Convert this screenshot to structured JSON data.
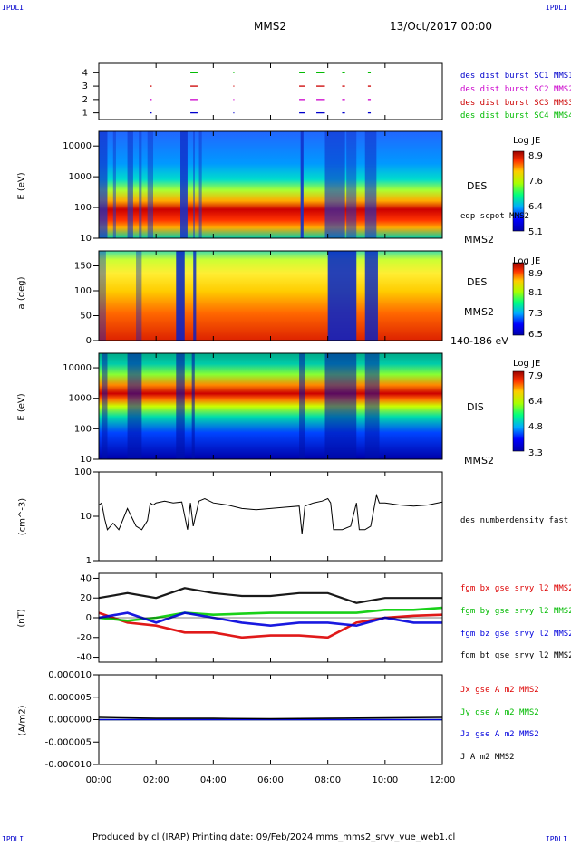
{
  "header": {
    "corner_tl": "IPDLI",
    "corner_tr": "IPDLI",
    "corner_bl": "IPDLI",
    "corner_br": "IPDLI",
    "title": "MMS2",
    "datetime": "13/Oct/2017 00:00",
    "footer": "Produced by cl (IRAP)   Printing date: 09/Feb/2024   mms_mms2_srvy_vue_web1.cl"
  },
  "time_axis": {
    "ticks": [
      "00:00",
      "02:00",
      "04:00",
      "06:00",
      "08:00",
      "10:00",
      "12:00"
    ],
    "range_hours": [
      0,
      12
    ]
  },
  "panels": {
    "burst": {
      "yticks": [
        "1",
        "2",
        "3",
        "4"
      ],
      "legend": [
        {
          "label": "des dist burst SC1 MMS1",
          "color": "#0000cc"
        },
        {
          "label": "des dist burst SC2 MMS2",
          "color": "#cc00cc"
        },
        {
          "label": "des dist burst SC3 MMS3",
          "color": "#cc0000"
        },
        {
          "label": "des dist burst SC4 MMS4",
          "color": "#00bb00"
        }
      ]
    },
    "des_energy": {
      "ylabel": "E (eV)",
      "yticks": [
        "10",
        "100",
        "1000",
        "10000"
      ],
      "label_main": "DES",
      "label_sub": "edp scpot MMS2",
      "label_sc": "MMS2",
      "colorbar_title": "Log JE",
      "colorbar_ticks": [
        "8.9",
        "7.6",
        "6.4",
        "5.1"
      ]
    },
    "des_pitch": {
      "ylabel": "a (deg)",
      "yticks": [
        "0",
        "50",
        "100",
        "150"
      ],
      "label_main": "DES",
      "label_sc": "MMS2",
      "label_range": "140-186 eV",
      "colorbar_title": "Log JE",
      "colorbar_ticks": [
        "8.9",
        "8.1",
        "7.3",
        "6.5"
      ]
    },
    "dis_energy": {
      "ylabel": "E (eV)",
      "yticks": [
        "10",
        "100",
        "1000",
        "10000"
      ],
      "label_main": "DIS",
      "label_sc": "MMS2",
      "colorbar_title": "Log JE",
      "colorbar_ticks": [
        "7.9",
        "6.4",
        "4.8",
        "3.3"
      ]
    },
    "density": {
      "ylabel": "(cm^-3)",
      "yticks": [
        "1",
        "10",
        "100"
      ],
      "legend": "des numberdensity fast M"
    },
    "bfield": {
      "ylabel": "(nT)",
      "yticks": [
        "-40",
        "-20",
        "0",
        "20",
        "40"
      ],
      "legend": [
        {
          "label": "fgm bx gse srvy l2 MMS2",
          "color": "#dd0000"
        },
        {
          "label": "fgm by gse srvy l2 MMS2",
          "color": "#00cc00"
        },
        {
          "label": "fgm bz gse srvy l2 MMS2",
          "color": "#0000dd"
        },
        {
          "label": "fgm bt gse srvy l2 MMS2",
          "color": "#000000"
        }
      ]
    },
    "current": {
      "ylabel": "(A/m2)",
      "yticks": [
        "-0.000010",
        "-0.000005",
        "0.000000",
        "0.000005",
        "0.000010"
      ],
      "legend": [
        {
          "label": "Jx gse A m2 MMS2",
          "color": "#dd0000"
        },
        {
          "label": "Jy gse A m2 MMS2",
          "color": "#00cc00"
        },
        {
          "label": "Jz gse A m2 MMS2",
          "color": "#0000dd"
        },
        {
          "label": "J A m2 MMS2",
          "color": "#000000"
        }
      ]
    }
  },
  "chart_data": [
    {
      "type": "scatter",
      "name": "burst intervals",
      "series": [
        {
          "name": "des dist burst SC1 MMS1",
          "y": 1,
          "intervals_h": [
            [
              1.8,
              1.85
            ],
            [
              3.2,
              3.45
            ],
            [
              4.7,
              4.72
            ],
            [
              7.0,
              7.2
            ],
            [
              7.6,
              7.9
            ],
            [
              8.5,
              8.6
            ],
            [
              9.4,
              9.5
            ]
          ]
        },
        {
          "name": "des dist burst SC2 MMS2",
          "y": 2,
          "intervals_h": [
            [
              1.8,
              1.85
            ],
            [
              3.2,
              3.45
            ],
            [
              4.7,
              4.72
            ],
            [
              7.0,
              7.2
            ],
            [
              7.6,
              7.9
            ],
            [
              8.5,
              8.6
            ],
            [
              9.4,
              9.5
            ]
          ]
        },
        {
          "name": "des dist burst SC3 MMS3",
          "y": 3,
          "intervals_h": [
            [
              1.8,
              1.85
            ],
            [
              3.2,
              3.45
            ],
            [
              4.7,
              4.72
            ],
            [
              7.0,
              7.2
            ],
            [
              7.6,
              7.9
            ],
            [
              8.5,
              8.6
            ],
            [
              9.4,
              9.5
            ]
          ]
        },
        {
          "name": "des dist burst SC4 MMS4",
          "y": 4,
          "intervals_h": [
            [
              3.2,
              3.45
            ],
            [
              4.7,
              4.72
            ],
            [
              7.0,
              7.2
            ],
            [
              7.6,
              7.9
            ],
            [
              8.5,
              8.6
            ],
            [
              9.4,
              9.5
            ]
          ]
        }
      ]
    },
    {
      "type": "line",
      "name": "des numberdensity fast M",
      "x_hours": [
        0,
        0.1,
        0.2,
        0.3,
        0.5,
        0.7,
        1.0,
        1.3,
        1.5,
        1.7,
        1.8,
        1.9,
        2.0,
        2.3,
        2.6,
        2.9,
        3.1,
        3.2,
        3.3,
        3.5,
        3.7,
        4.0,
        4.5,
        5.0,
        5.5,
        6.0,
        6.5,
        7.0,
        7.1,
        7.2,
        7.3,
        7.5,
        7.8,
        8.0,
        8.1,
        8.2,
        8.5,
        8.8,
        9.0,
        9.1,
        9.3,
        9.5,
        9.7,
        9.8,
        10.0,
        10.5,
        11.0,
        11.5,
        12.0
      ],
      "y_cm3": [
        18,
        20,
        9,
        5,
        7,
        5,
        15,
        6,
        5,
        8,
        20,
        18,
        20,
        22,
        20,
        21,
        5,
        20,
        6,
        22,
        25,
        20,
        18,
        15,
        14,
        15,
        16,
        17,
        4,
        17,
        18,
        20,
        22,
        25,
        20,
        5,
        5,
        6,
        20,
        5,
        5,
        6,
        30,
        20,
        20,
        18,
        17,
        18,
        21
      ],
      "ylim": [
        1,
        100
      ],
      "log": true
    },
    {
      "type": "line",
      "name": "B field GSE (nT)",
      "x_hours": [
        0,
        1,
        2,
        3,
        4,
        5,
        6,
        7,
        8,
        9,
        10,
        11,
        12
      ],
      "series": [
        {
          "name": "fgm bx gse srvy l2 MMS2",
          "values": [
            5,
            -5,
            -8,
            -15,
            -15,
            -20,
            -18,
            -18,
            -20,
            -5,
            0,
            2,
            3
          ]
        },
        {
          "name": "fgm by gse srvy l2 MMS2",
          "values": [
            0,
            -3,
            0,
            5,
            3,
            4,
            5,
            5,
            5,
            5,
            8,
            8,
            10
          ]
        },
        {
          "name": "fgm bz gse srvy l2 MMS2",
          "values": [
            0,
            5,
            -5,
            5,
            0,
            -5,
            -8,
            -5,
            -5,
            -8,
            0,
            -5,
            -5
          ]
        },
        {
          "name": "fgm bt gse srvy l2 MMS2",
          "values": [
            20,
            25,
            20,
            30,
            25,
            22,
            22,
            25,
            25,
            15,
            20,
            20,
            20
          ]
        }
      ],
      "ylim": [
        -45,
        45
      ]
    },
    {
      "type": "line",
      "name": "Current density (A/m2)",
      "x_hours": [
        0,
        2,
        4,
        6,
        8,
        10,
        12
      ],
      "series": [
        {
          "name": "Jx gse A m2 MMS2",
          "values": [
            0,
            0,
            0,
            0,
            0,
            0,
            0
          ]
        },
        {
          "name": "Jy gse A m2 MMS2",
          "values": [
            0,
            0,
            0,
            0,
            0,
            0,
            0
          ]
        },
        {
          "name": "Jz gse A m2 MMS2",
          "values": [
            0,
            0,
            0,
            0,
            0,
            0,
            0
          ]
        },
        {
          "name": "J A m2 MMS2",
          "values": [
            5e-07,
            3e-07,
            3e-07,
            2e-07,
            3e-07,
            4e-07,
            5e-07
          ]
        }
      ],
      "ylim": [
        -1e-05,
        1e-05
      ]
    }
  ]
}
